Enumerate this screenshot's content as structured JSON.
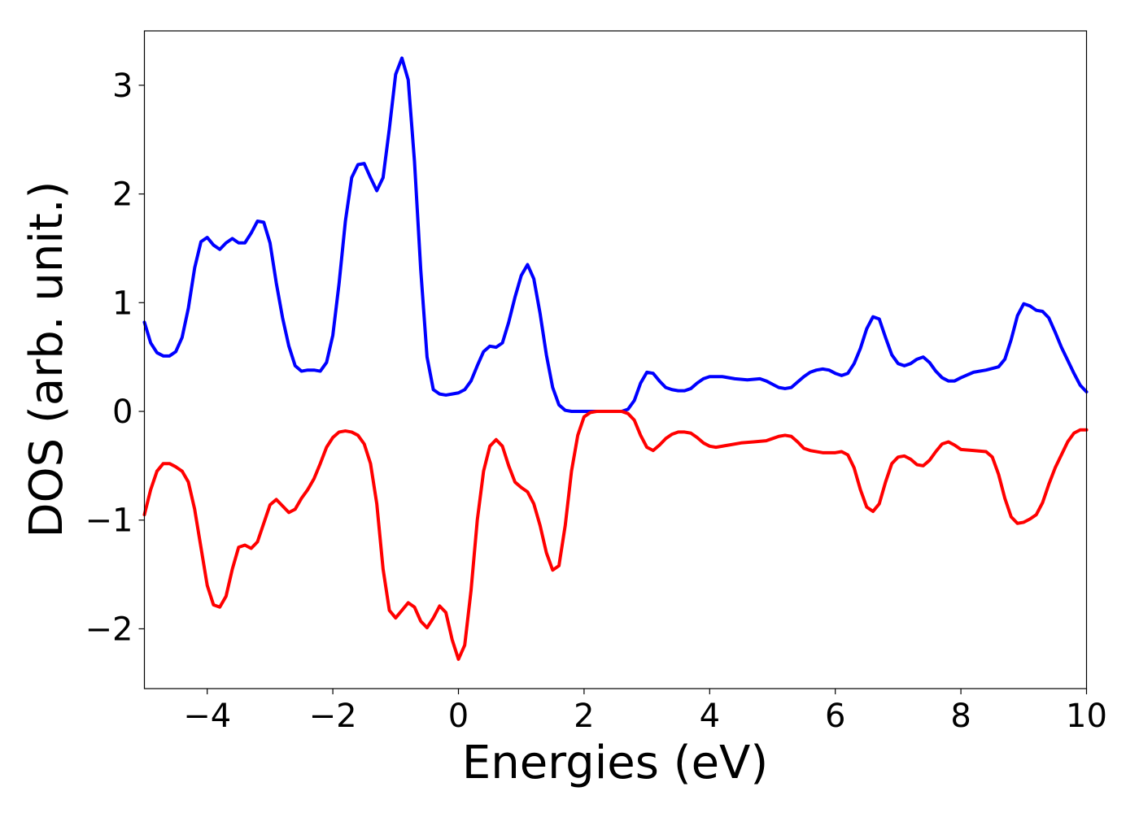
{
  "chart_data": {
    "type": "line",
    "title": "",
    "xlabel": "Energies (eV)",
    "ylabel": "DOS (arb. unit.)",
    "xlim": [
      -5,
      10
    ],
    "ylim": [
      -2.55,
      3.5
    ],
    "xticks": [
      -4,
      -2,
      0,
      2,
      4,
      6,
      8,
      10
    ],
    "xtick_labels": [
      "−4",
      "−2",
      "0",
      "2",
      "4",
      "6",
      "8",
      "10"
    ],
    "yticks": [
      -2,
      -1,
      0,
      1,
      2,
      3
    ],
    "ytick_labels": [
      "−2",
      "−1",
      "0",
      "1",
      "2",
      "3"
    ],
    "grid": false,
    "series": [
      {
        "color": "#0000ff",
        "points": [
          [
            -5.0,
            0.82
          ],
          [
            -4.9,
            0.63
          ],
          [
            -4.8,
            0.54
          ],
          [
            -4.7,
            0.51
          ],
          [
            -4.6,
            0.51
          ],
          [
            -4.5,
            0.55
          ],
          [
            -4.4,
            0.68
          ],
          [
            -4.3,
            0.95
          ],
          [
            -4.2,
            1.32
          ],
          [
            -4.1,
            1.56
          ],
          [
            -4.0,
            1.6
          ],
          [
            -3.9,
            1.53
          ],
          [
            -3.8,
            1.49
          ],
          [
            -3.7,
            1.55
          ],
          [
            -3.6,
            1.59
          ],
          [
            -3.5,
            1.55
          ],
          [
            -3.4,
            1.55
          ],
          [
            -3.3,
            1.64
          ],
          [
            -3.2,
            1.75
          ],
          [
            -3.1,
            1.74
          ],
          [
            -3.0,
            1.55
          ],
          [
            -2.9,
            1.18
          ],
          [
            -2.8,
            0.86
          ],
          [
            -2.7,
            0.6
          ],
          [
            -2.6,
            0.42
          ],
          [
            -2.5,
            0.37
          ],
          [
            -2.4,
            0.38
          ],
          [
            -2.3,
            0.38
          ],
          [
            -2.2,
            0.37
          ],
          [
            -2.1,
            0.45
          ],
          [
            -2.0,
            0.7
          ],
          [
            -1.9,
            1.18
          ],
          [
            -1.8,
            1.75
          ],
          [
            -1.7,
            2.15
          ],
          [
            -1.6,
            2.27
          ],
          [
            -1.5,
            2.28
          ],
          [
            -1.4,
            2.15
          ],
          [
            -1.3,
            2.03
          ],
          [
            -1.2,
            2.15
          ],
          [
            -1.1,
            2.6
          ],
          [
            -1.0,
            3.1
          ],
          [
            -0.9,
            3.25
          ],
          [
            -0.8,
            3.05
          ],
          [
            -0.7,
            2.3
          ],
          [
            -0.6,
            1.3
          ],
          [
            -0.5,
            0.5
          ],
          [
            -0.4,
            0.2
          ],
          [
            -0.3,
            0.16
          ],
          [
            -0.2,
            0.15
          ],
          [
            -0.1,
            0.16
          ],
          [
            0.0,
            0.17
          ],
          [
            0.1,
            0.2
          ],
          [
            0.2,
            0.28
          ],
          [
            0.3,
            0.42
          ],
          [
            0.4,
            0.55
          ],
          [
            0.5,
            0.6
          ],
          [
            0.6,
            0.59
          ],
          [
            0.7,
            0.63
          ],
          [
            0.8,
            0.82
          ],
          [
            0.9,
            1.05
          ],
          [
            1.0,
            1.25
          ],
          [
            1.1,
            1.35
          ],
          [
            1.2,
            1.22
          ],
          [
            1.3,
            0.9
          ],
          [
            1.4,
            0.52
          ],
          [
            1.5,
            0.22
          ],
          [
            1.6,
            0.06
          ],
          [
            1.7,
            0.01
          ],
          [
            1.8,
            0.0
          ],
          [
            2.0,
            0.0
          ],
          [
            2.2,
            0.0
          ],
          [
            2.4,
            0.0
          ],
          [
            2.6,
            0.0
          ],
          [
            2.7,
            0.02
          ],
          [
            2.8,
            0.1
          ],
          [
            2.9,
            0.26
          ],
          [
            3.0,
            0.36
          ],
          [
            3.1,
            0.35
          ],
          [
            3.2,
            0.28
          ],
          [
            3.3,
            0.22
          ],
          [
            3.4,
            0.2
          ],
          [
            3.5,
            0.19
          ],
          [
            3.6,
            0.19
          ],
          [
            3.7,
            0.21
          ],
          [
            3.8,
            0.26
          ],
          [
            3.9,
            0.3
          ],
          [
            4.0,
            0.32
          ],
          [
            4.2,
            0.32
          ],
          [
            4.4,
            0.3
          ],
          [
            4.6,
            0.29
          ],
          [
            4.8,
            0.3
          ],
          [
            4.9,
            0.28
          ],
          [
            5.0,
            0.25
          ],
          [
            5.1,
            0.22
          ],
          [
            5.2,
            0.21
          ],
          [
            5.3,
            0.22
          ],
          [
            5.4,
            0.27
          ],
          [
            5.5,
            0.32
          ],
          [
            5.6,
            0.36
          ],
          [
            5.7,
            0.38
          ],
          [
            5.8,
            0.39
          ],
          [
            5.9,
            0.38
          ],
          [
            6.0,
            0.35
          ],
          [
            6.1,
            0.33
          ],
          [
            6.2,
            0.35
          ],
          [
            6.3,
            0.44
          ],
          [
            6.4,
            0.58
          ],
          [
            6.5,
            0.76
          ],
          [
            6.6,
            0.87
          ],
          [
            6.7,
            0.85
          ],
          [
            6.8,
            0.68
          ],
          [
            6.9,
            0.52
          ],
          [
            7.0,
            0.44
          ],
          [
            7.1,
            0.42
          ],
          [
            7.2,
            0.44
          ],
          [
            7.3,
            0.48
          ],
          [
            7.4,
            0.5
          ],
          [
            7.5,
            0.45
          ],
          [
            7.6,
            0.37
          ],
          [
            7.7,
            0.31
          ],
          [
            7.8,
            0.28
          ],
          [
            7.9,
            0.28
          ],
          [
            8.0,
            0.31
          ],
          [
            8.2,
            0.36
          ],
          [
            8.4,
            0.38
          ],
          [
            8.6,
            0.41
          ],
          [
            8.7,
            0.48
          ],
          [
            8.8,
            0.66
          ],
          [
            8.9,
            0.88
          ],
          [
            9.0,
            0.99
          ],
          [
            9.1,
            0.97
          ],
          [
            9.2,
            0.93
          ],
          [
            9.3,
            0.92
          ],
          [
            9.4,
            0.86
          ],
          [
            9.5,
            0.73
          ],
          [
            9.6,
            0.59
          ],
          [
            9.7,
            0.47
          ],
          [
            9.8,
            0.35
          ],
          [
            9.9,
            0.24
          ],
          [
            10.0,
            0.18
          ]
        ]
      },
      {
        "color": "#ff0000",
        "points": [
          [
            -5.0,
            -0.95
          ],
          [
            -4.9,
            -0.72
          ],
          [
            -4.8,
            -0.55
          ],
          [
            -4.7,
            -0.48
          ],
          [
            -4.6,
            -0.48
          ],
          [
            -4.5,
            -0.51
          ],
          [
            -4.4,
            -0.55
          ],
          [
            -4.3,
            -0.65
          ],
          [
            -4.2,
            -0.9
          ],
          [
            -4.1,
            -1.25
          ],
          [
            -4.0,
            -1.6
          ],
          [
            -3.9,
            -1.78
          ],
          [
            -3.8,
            -1.8
          ],
          [
            -3.7,
            -1.7
          ],
          [
            -3.6,
            -1.45
          ],
          [
            -3.5,
            -1.25
          ],
          [
            -3.4,
            -1.23
          ],
          [
            -3.3,
            -1.26
          ],
          [
            -3.2,
            -1.2
          ],
          [
            -3.1,
            -1.03
          ],
          [
            -3.0,
            -0.86
          ],
          [
            -2.9,
            -0.81
          ],
          [
            -2.8,
            -0.87
          ],
          [
            -2.7,
            -0.93
          ],
          [
            -2.6,
            -0.9
          ],
          [
            -2.5,
            -0.8
          ],
          [
            -2.4,
            -0.72
          ],
          [
            -2.3,
            -0.62
          ],
          [
            -2.2,
            -0.48
          ],
          [
            -2.1,
            -0.33
          ],
          [
            -2.0,
            -0.24
          ],
          [
            -1.9,
            -0.19
          ],
          [
            -1.8,
            -0.18
          ],
          [
            -1.7,
            -0.19
          ],
          [
            -1.6,
            -0.22
          ],
          [
            -1.5,
            -0.3
          ],
          [
            -1.4,
            -0.48
          ],
          [
            -1.3,
            -0.85
          ],
          [
            -1.2,
            -1.45
          ],
          [
            -1.1,
            -1.83
          ],
          [
            -1.0,
            -1.9
          ],
          [
            -0.9,
            -1.83
          ],
          [
            -0.8,
            -1.76
          ],
          [
            -0.7,
            -1.8
          ],
          [
            -0.6,
            -1.93
          ],
          [
            -0.5,
            -1.99
          ],
          [
            -0.4,
            -1.9
          ],
          [
            -0.3,
            -1.79
          ],
          [
            -0.2,
            -1.85
          ],
          [
            -0.1,
            -2.1
          ],
          [
            0.0,
            -2.28
          ],
          [
            0.1,
            -2.15
          ],
          [
            0.2,
            -1.65
          ],
          [
            0.3,
            -1.0
          ],
          [
            0.4,
            -0.55
          ],
          [
            0.5,
            -0.32
          ],
          [
            0.6,
            -0.26
          ],
          [
            0.7,
            -0.32
          ],
          [
            0.8,
            -0.5
          ],
          [
            0.9,
            -0.65
          ],
          [
            1.0,
            -0.7
          ],
          [
            1.1,
            -0.74
          ],
          [
            1.2,
            -0.85
          ],
          [
            1.3,
            -1.05
          ],
          [
            1.4,
            -1.3
          ],
          [
            1.5,
            -1.46
          ],
          [
            1.6,
            -1.42
          ],
          [
            1.7,
            -1.05
          ],
          [
            1.8,
            -0.55
          ],
          [
            1.9,
            -0.22
          ],
          [
            2.0,
            -0.05
          ],
          [
            2.1,
            -0.01
          ],
          [
            2.2,
            0.0
          ],
          [
            2.4,
            0.0
          ],
          [
            2.6,
            0.0
          ],
          [
            2.7,
            -0.02
          ],
          [
            2.8,
            -0.08
          ],
          [
            2.9,
            -0.22
          ],
          [
            3.0,
            -0.33
          ],
          [
            3.1,
            -0.36
          ],
          [
            3.2,
            -0.31
          ],
          [
            3.3,
            -0.25
          ],
          [
            3.4,
            -0.21
          ],
          [
            3.5,
            -0.19
          ],
          [
            3.6,
            -0.19
          ],
          [
            3.7,
            -0.2
          ],
          [
            3.8,
            -0.24
          ],
          [
            3.9,
            -0.29
          ],
          [
            4.0,
            -0.32
          ],
          [
            4.1,
            -0.33
          ],
          [
            4.3,
            -0.31
          ],
          [
            4.5,
            -0.29
          ],
          [
            4.7,
            -0.28
          ],
          [
            4.9,
            -0.27
          ],
          [
            5.0,
            -0.25
          ],
          [
            5.1,
            -0.23
          ],
          [
            5.2,
            -0.22
          ],
          [
            5.3,
            -0.23
          ],
          [
            5.4,
            -0.28
          ],
          [
            5.5,
            -0.34
          ],
          [
            5.6,
            -0.36
          ],
          [
            5.8,
            -0.38
          ],
          [
            6.0,
            -0.38
          ],
          [
            6.1,
            -0.37
          ],
          [
            6.2,
            -0.4
          ],
          [
            6.3,
            -0.52
          ],
          [
            6.4,
            -0.72
          ],
          [
            6.5,
            -0.88
          ],
          [
            6.6,
            -0.92
          ],
          [
            6.7,
            -0.85
          ],
          [
            6.8,
            -0.65
          ],
          [
            6.9,
            -0.48
          ],
          [
            7.0,
            -0.42
          ],
          [
            7.1,
            -0.41
          ],
          [
            7.2,
            -0.44
          ],
          [
            7.3,
            -0.49
          ],
          [
            7.4,
            -0.5
          ],
          [
            7.5,
            -0.45
          ],
          [
            7.6,
            -0.37
          ],
          [
            7.7,
            -0.3
          ],
          [
            7.8,
            -0.28
          ],
          [
            7.9,
            -0.31
          ],
          [
            8.0,
            -0.35
          ],
          [
            8.2,
            -0.36
          ],
          [
            8.4,
            -0.37
          ],
          [
            8.5,
            -0.42
          ],
          [
            8.6,
            -0.58
          ],
          [
            8.7,
            -0.8
          ],
          [
            8.8,
            -0.97
          ],
          [
            8.9,
            -1.03
          ],
          [
            9.0,
            -1.02
          ],
          [
            9.1,
            -0.99
          ],
          [
            9.2,
            -0.95
          ],
          [
            9.3,
            -0.84
          ],
          [
            9.4,
            -0.67
          ],
          [
            9.5,
            -0.52
          ],
          [
            9.6,
            -0.4
          ],
          [
            9.7,
            -0.28
          ],
          [
            9.8,
            -0.2
          ],
          [
            9.9,
            -0.17
          ],
          [
            10.0,
            -0.17
          ]
        ]
      }
    ]
  }
}
